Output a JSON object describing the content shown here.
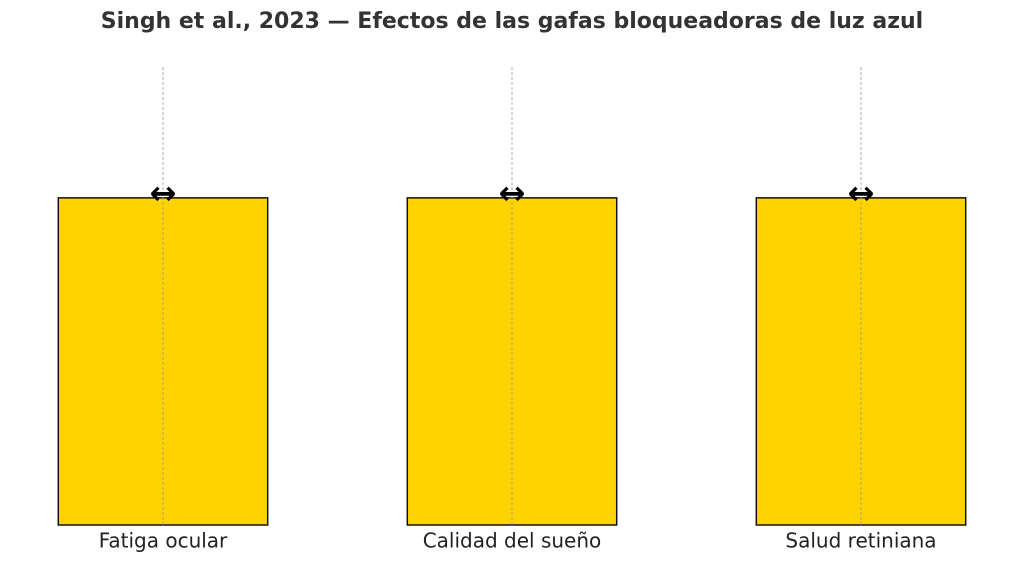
{
  "chart_data": {
    "type": "bar",
    "title": "Singh et al., 2023 — Efectos de las gafas bloqueadoras de luz azul",
    "categories": [
      "Fatiga ocular",
      "Calidad del sueño",
      "Salud retiniana"
    ],
    "values": [
      1,
      1,
      1
    ],
    "annotations": [
      "↔",
      "↔",
      "↔"
    ],
    "color": "#ffd300",
    "ylim": [
      0,
      1.4
    ],
    "grid": "x"
  }
}
